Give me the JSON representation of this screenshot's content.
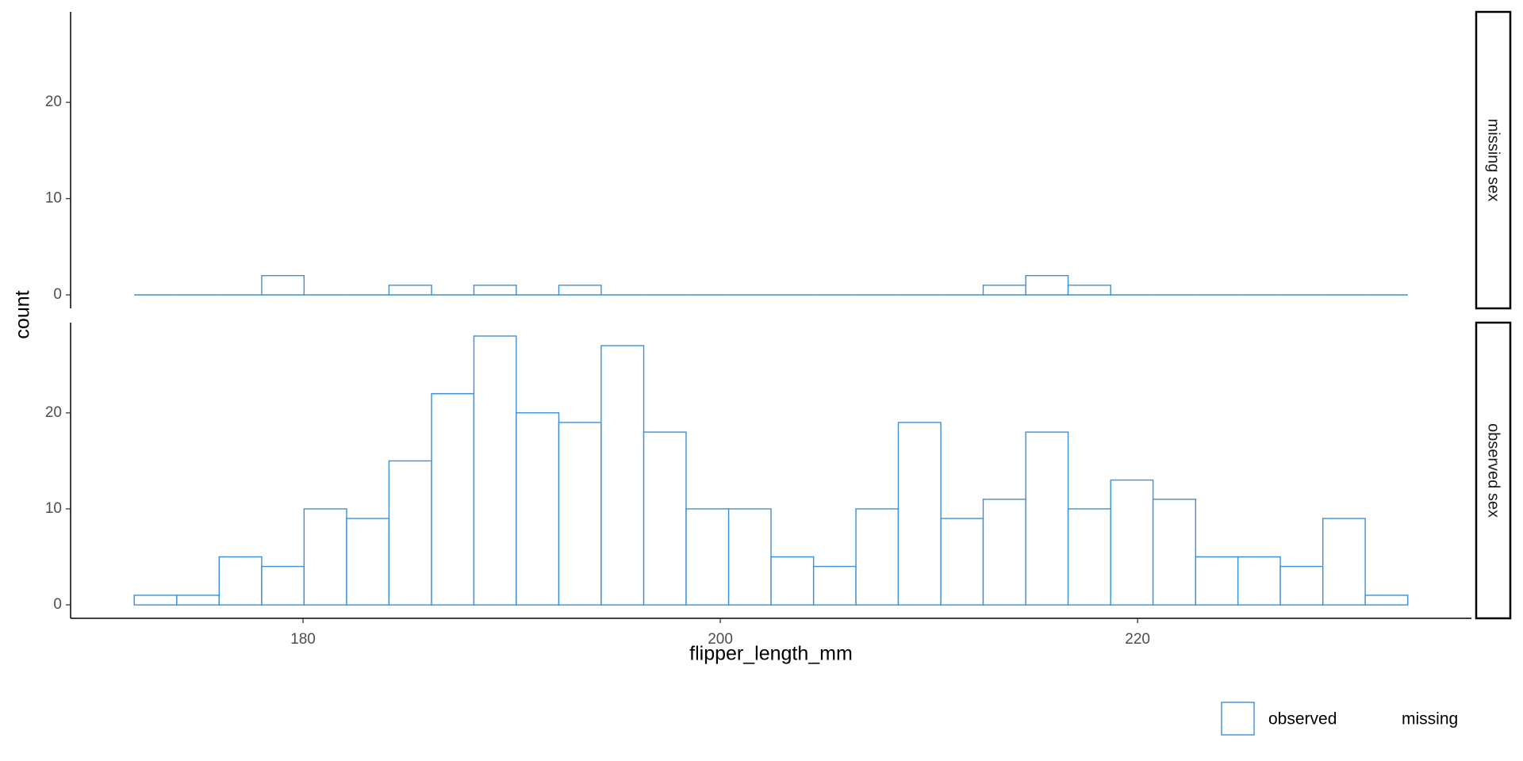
{
  "x_label": "flipper_length_mm",
  "y_label": "count",
  "legend": [
    {
      "name": "observed",
      "color": "#3b8fd6"
    },
    {
      "name": "missing",
      "color": "none"
    }
  ],
  "chart_data": [
    {
      "type": "histogram",
      "facet": "missing sex",
      "color": "#3b8fd6",
      "bins": [
        171.91,
        173.95,
        175.98,
        178.02,
        180.05,
        182.09,
        184.12,
        186.16,
        188.19,
        190.22,
        192.26,
        194.29,
        196.33,
        198.36,
        200.4,
        202.43,
        204.47,
        206.5,
        208.53,
        210.57,
        212.6,
        214.64,
        216.67,
        218.71,
        220.74,
        222.78,
        224.81,
        226.84,
        228.88,
        230.91,
        232.95
      ],
      "values": [
        0,
        0,
        0,
        2,
        0,
        0,
        1,
        0,
        1,
        0,
        1,
        0,
        0,
        0,
        0,
        0,
        0,
        0,
        0,
        0,
        1,
        2,
        1,
        0,
        0,
        0,
        0,
        0,
        0,
        0
      ],
      "xlim": [
        168.86,
        236.0
      ],
      "ylim": [
        -1.4,
        29.4
      ],
      "yticks": [
        0,
        10,
        20
      ]
    },
    {
      "type": "histogram",
      "facet": "observed sex",
      "color": "#3b8fd6",
      "bins": [
        171.91,
        173.95,
        175.98,
        178.02,
        180.05,
        182.09,
        184.12,
        186.16,
        188.19,
        190.22,
        192.26,
        194.29,
        196.33,
        198.36,
        200.4,
        202.43,
        204.47,
        206.5,
        208.53,
        210.57,
        212.6,
        214.64,
        216.67,
        218.71,
        220.74,
        222.78,
        224.81,
        226.84,
        228.88,
        230.91,
        232.95
      ],
      "values": [
        1,
        1,
        5,
        4,
        10,
        9,
        15,
        22,
        28,
        20,
        19,
        27,
        18,
        10,
        10,
        5,
        4,
        10,
        19,
        9,
        11,
        18,
        10,
        13,
        11,
        5,
        5,
        4,
        9,
        1
      ],
      "xlim": [
        168.86,
        236.0
      ],
      "ylim": [
        -1.4,
        29.4
      ],
      "yticks": [
        0,
        10,
        20
      ],
      "xticks": [
        180,
        200,
        220
      ]
    }
  ]
}
